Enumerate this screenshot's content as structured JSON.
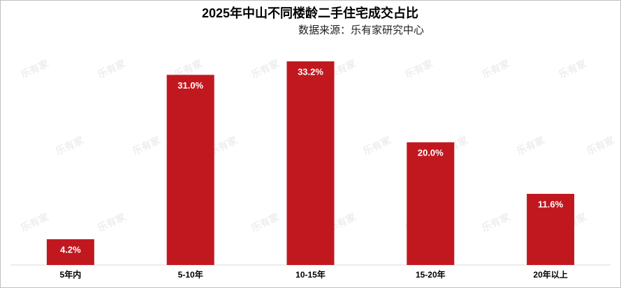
{
  "chart_data": {
    "type": "bar",
    "title": "2025年中山不同楼龄二手住宅成交占比",
    "subtitle": "数据来源：乐有家研究中心",
    "watermark": "乐有家",
    "categories": [
      "5年内",
      "5-10年",
      "10-15年",
      "15-20年",
      "20年以上"
    ],
    "values": [
      4.2,
      31.0,
      33.2,
      20.0,
      11.6
    ],
    "value_labels": [
      "4.2%",
      "31.0%",
      "33.2%",
      "20.0%",
      "11.6%"
    ],
    "color": "#c1181f"
  }
}
